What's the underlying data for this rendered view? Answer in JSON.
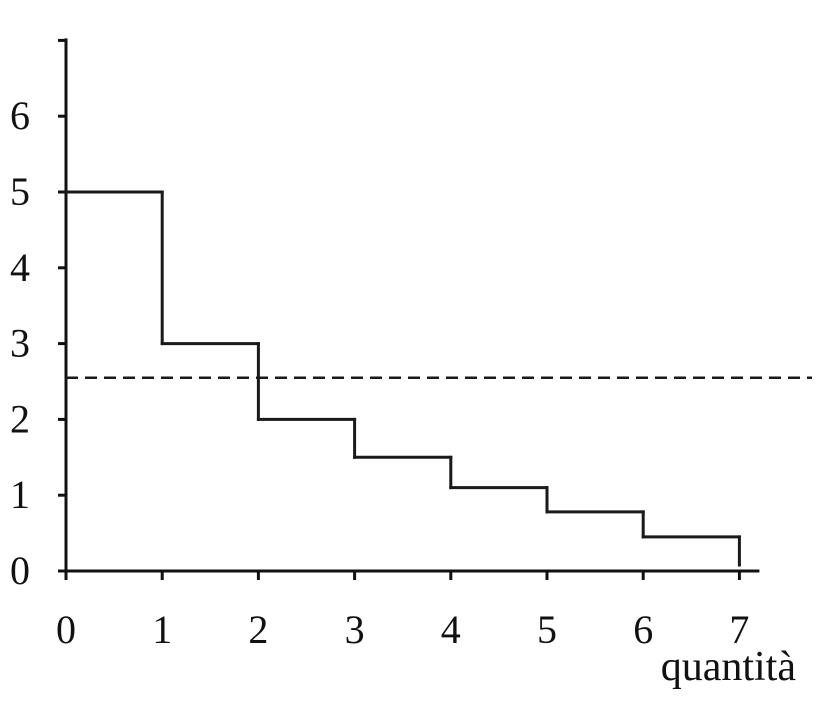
{
  "chart_data": {
    "type": "line",
    "subtype": "step",
    "title": "",
    "xlabel": "quantità",
    "ylabel": "",
    "xlim": [
      0,
      7
    ],
    "ylim": [
      0,
      7
    ],
    "x_ticks": [
      "0",
      "1",
      "2",
      "3",
      "4",
      "5",
      "6",
      "7"
    ],
    "y_ticks": [
      "0",
      "1",
      "2",
      "3",
      "4",
      "5",
      "6"
    ],
    "grid": false,
    "legend": "none",
    "series": [
      {
        "style": "solid step",
        "steps": [
          {
            "x_start": 0,
            "x_end": 1,
            "y": 5
          },
          {
            "x_start": 1,
            "x_end": 2,
            "y": 3
          },
          {
            "x_start": 2,
            "x_end": 3,
            "y": 2
          },
          {
            "x_start": 3,
            "x_end": 4,
            "y": 1.5
          },
          {
            "x_start": 4,
            "x_end": 5,
            "y": 1.1
          },
          {
            "x_start": 5,
            "x_end": 6,
            "y": 0.78
          },
          {
            "x_start": 6,
            "x_end": 7,
            "y": 0.45
          }
        ]
      }
    ],
    "reference_lines": [
      {
        "orientation": "horizontal",
        "y": 2.55,
        "style": "dashed"
      }
    ]
  }
}
